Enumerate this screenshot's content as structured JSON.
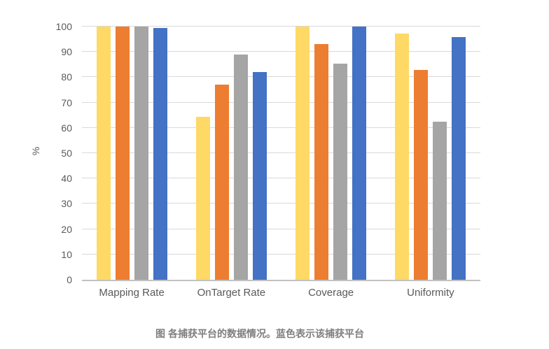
{
  "chart_data": {
    "type": "bar",
    "title": "",
    "xlabel": "",
    "ylabel": "%",
    "ylim": [
      0,
      100
    ],
    "yticks": [
      0,
      10,
      20,
      30,
      40,
      50,
      60,
      70,
      80,
      90,
      100
    ],
    "grid": true,
    "legend_position": "none",
    "categories": [
      "Mapping Rate",
      "OnTarget Rate",
      "Coverage",
      "Uniformity"
    ],
    "series": [
      {
        "name": "yellow",
        "color": "#FFD966",
        "values": [
          100,
          64.5,
          100,
          97.2
        ]
      },
      {
        "name": "orange",
        "color": "#ED7D31",
        "values": [
          100,
          77,
          93,
          83
        ]
      },
      {
        "name": "gray",
        "color": "#A5A5A5",
        "values": [
          100,
          89,
          85.3,
          62.5
        ]
      },
      {
        "name": "blue",
        "color": "#4472C4",
        "values": [
          99.5,
          82,
          100,
          95.8
        ]
      }
    ]
  },
  "caption": "图 各捕获平台的数据情况。蓝色表示该捕获平台",
  "colors": {
    "background": "#FFFFFF",
    "gridline": "#D9D9D9",
    "axis_line": "#C1C1C1",
    "tick_label": "#595959",
    "caption": "#7F7F7F"
  }
}
